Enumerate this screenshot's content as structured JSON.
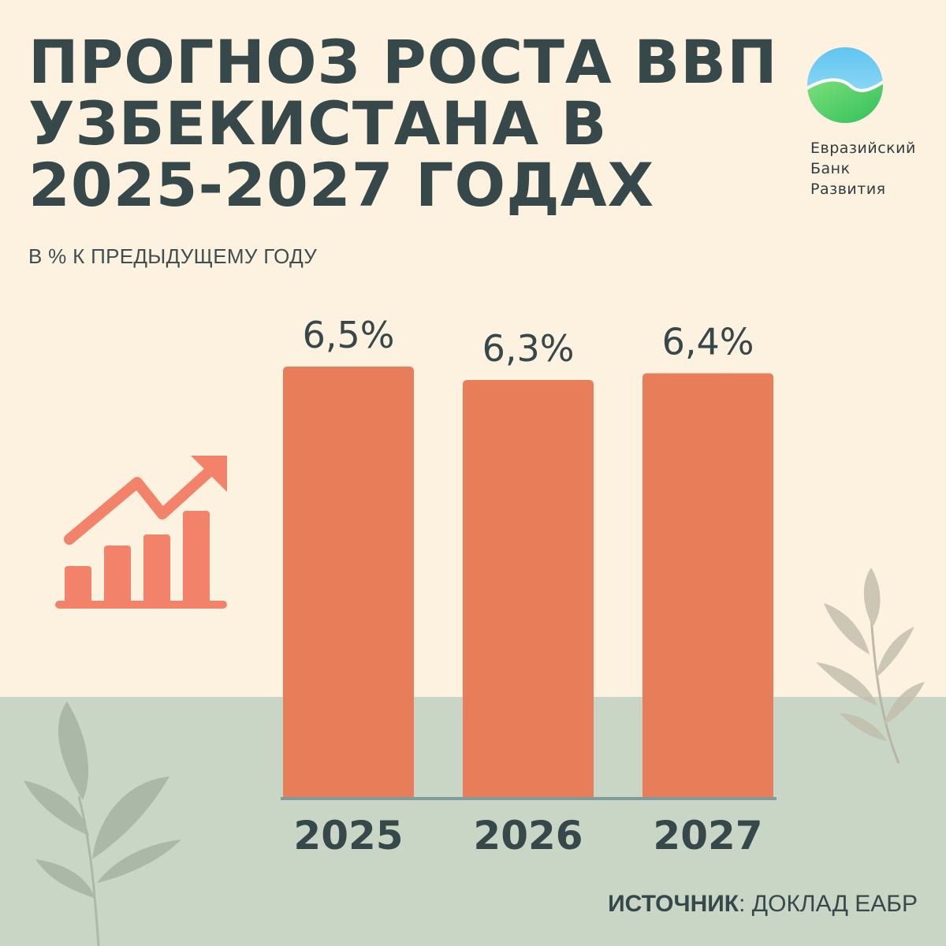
{
  "title_lines": [
    "ПРОГНОЗ РОСТА ВВП",
    "УЗБЕКИСТАНА В",
    "2025-2027 ГОДАХ"
  ],
  "subtitle": "В % К ПРЕДЫДУЩЕМУ ГОДУ",
  "logo": {
    "line1": "Евразийский",
    "line2": "Банк",
    "line3": "Развития"
  },
  "source": {
    "label": "ИСТОЧНИК",
    "text": ": ДОКЛАД ЕАБР"
  },
  "colors": {
    "background": "#fdf1df",
    "band": "#c9d6c5",
    "bar": "#e87d5a",
    "text": "#37484a",
    "baseline": "#7f9c9b",
    "icon": "#f2836a"
  },
  "chart_data": {
    "type": "bar",
    "categories": [
      "2025",
      "2026",
      "2027"
    ],
    "values": [
      6.5,
      6.3,
      6.4
    ],
    "value_labels": [
      "6,5%",
      "6,3%",
      "6,4%"
    ],
    "title": "ПРОГНОЗ РОСТА ВВП УЗБЕКИСТАНА В 2025-2027 ГОДАХ",
    "ylabel": "В % К ПРЕДЫДУЩЕМУ ГОДУ",
    "ylim": [
      0,
      6.5
    ],
    "grid": false
  }
}
